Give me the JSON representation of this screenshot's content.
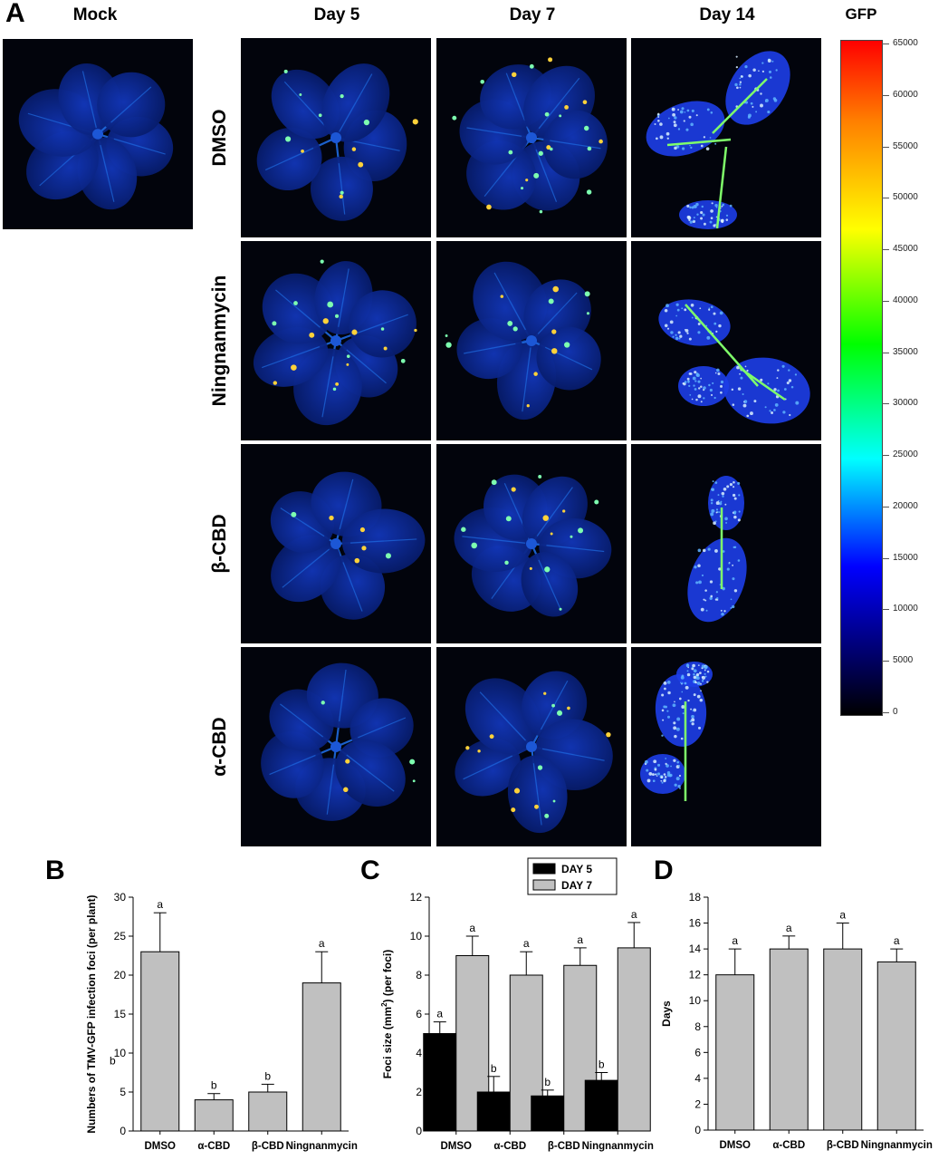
{
  "panel_a": {
    "letter": "A",
    "mock_label": "Mock",
    "day_labels": [
      "Day 5",
      "Day 7",
      "Day 14"
    ],
    "treatments": [
      "DMSO",
      "Ningnanmycin",
      "β-CBD",
      "α-CBD"
    ],
    "colorbar": {
      "title": "GFP",
      "ticks": [
        "65000",
        "60000",
        "55000",
        "50000",
        "45000",
        "40000",
        "35000",
        "30000",
        "25000",
        "20000",
        "15000",
        "10000",
        "5000",
        "0"
      ],
      "colors": [
        "#ff0000",
        "#ff8000",
        "#ffff00",
        "#00ff00",
        "#00ffff",
        "#0000ff",
        "#000060",
        "#000000"
      ]
    },
    "colors": {
      "leaf": "#0a2a9a",
      "leaf_dark": "#061a66",
      "vein": "#1e6be0",
      "spot_hot": "#ffd23a",
      "spot_warm": "#7dffb0",
      "background": "#02040c"
    }
  },
  "chart_data": [
    {
      "type": "bar",
      "letter": "B",
      "categories": [
        "DMSO",
        "α-CBD",
        "β-CBD",
        "Ningnanmycin"
      ],
      "series": [
        {
          "values": [
            23,
            4,
            5,
            19
          ],
          "errors": [
            5,
            0.8,
            1,
            4
          ],
          "letters": [
            "a",
            "b",
            "b",
            "a"
          ]
        }
      ],
      "ylabel": "Numbers of TMV-GFP infection foci (per plant)",
      "ylim": [
        0,
        30
      ],
      "yticks": [
        "0",
        "5",
        "10",
        "15",
        "20",
        "25",
        "30"
      ],
      "stray_label": "b",
      "bar_color": "#c0c0c0",
      "grid": false
    },
    {
      "type": "bar",
      "letter": "C",
      "categories": [
        "DMSO",
        "α-CBD",
        "β-CBD",
        "Ningnanmycin"
      ],
      "series": [
        {
          "name": "DAY 5",
          "color": "#000000",
          "values": [
            5,
            2,
            1.8,
            2.6
          ],
          "errors": [
            0.6,
            0.8,
            0.3,
            0.4
          ],
          "letters": [
            "a",
            "b",
            "b",
            "b"
          ]
        },
        {
          "name": "DAY 7",
          "color": "#c0c0c0",
          "values": [
            9,
            8,
            8.5,
            9.4
          ],
          "errors": [
            1,
            1.2,
            0.9,
            1.3
          ],
          "letters": [
            "a",
            "a",
            "a",
            "a"
          ]
        }
      ],
      "ylabel_pre": "Foci size (mm",
      "ylabel_sup": "2",
      "ylabel_post": ") (per foci)",
      "ylim": [
        0,
        12
      ],
      "yticks": [
        "0",
        "2",
        "4",
        "6",
        "8",
        "10",
        "12"
      ],
      "legend": "top-center",
      "grid": false
    },
    {
      "type": "bar",
      "letter": "D",
      "categories": [
        "DMSO",
        "α-CBD",
        "β-CBD",
        "Ningnanmycin"
      ],
      "series": [
        {
          "values": [
            12,
            14,
            14,
            13
          ],
          "errors": [
            2,
            1,
            2,
            1
          ],
          "letters": [
            "a",
            "a",
            "a",
            "a"
          ]
        }
      ],
      "ylabel": "Days",
      "ylim": [
        0,
        18
      ],
      "yticks": [
        "0",
        "2",
        "4",
        "6",
        "8",
        "10",
        "12",
        "14",
        "16",
        "18"
      ],
      "bar_color": "#c0c0c0",
      "grid": false
    }
  ]
}
